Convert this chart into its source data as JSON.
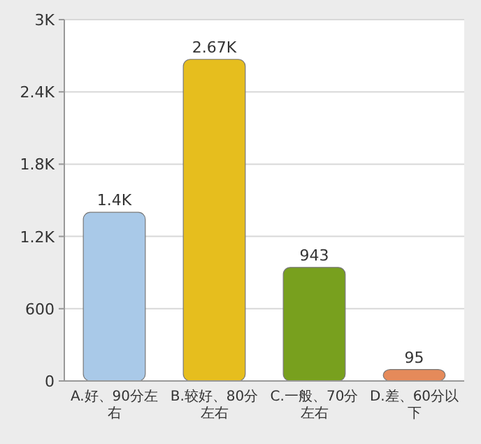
{
  "chart_data": {
    "type": "bar",
    "categories": [
      "A.好、90分左右",
      "B.较好、80分左右",
      "C.一般、70分左右",
      "D.差、60分以下"
    ],
    "values": [
      1400,
      2670,
      943,
      95
    ],
    "colors": [
      "#a9c9e8",
      "#e6be1e",
      "#78a01e",
      "#e58a5a"
    ],
    "value_labels": [
      "1.4K",
      "2.67K",
      "943",
      "95"
    ],
    "ylim": [
      0,
      3000
    ],
    "yticks": [
      0,
      600,
      {
        "value": 1200,
        "label": "1.2K"
      },
      {
        "value": 1800,
        "label": "1.8K"
      },
      {
        "value": 2400,
        "label": "2.4K"
      },
      {
        "value": 3000,
        "label": "3K"
      }
    ],
    "grid": "y"
  }
}
